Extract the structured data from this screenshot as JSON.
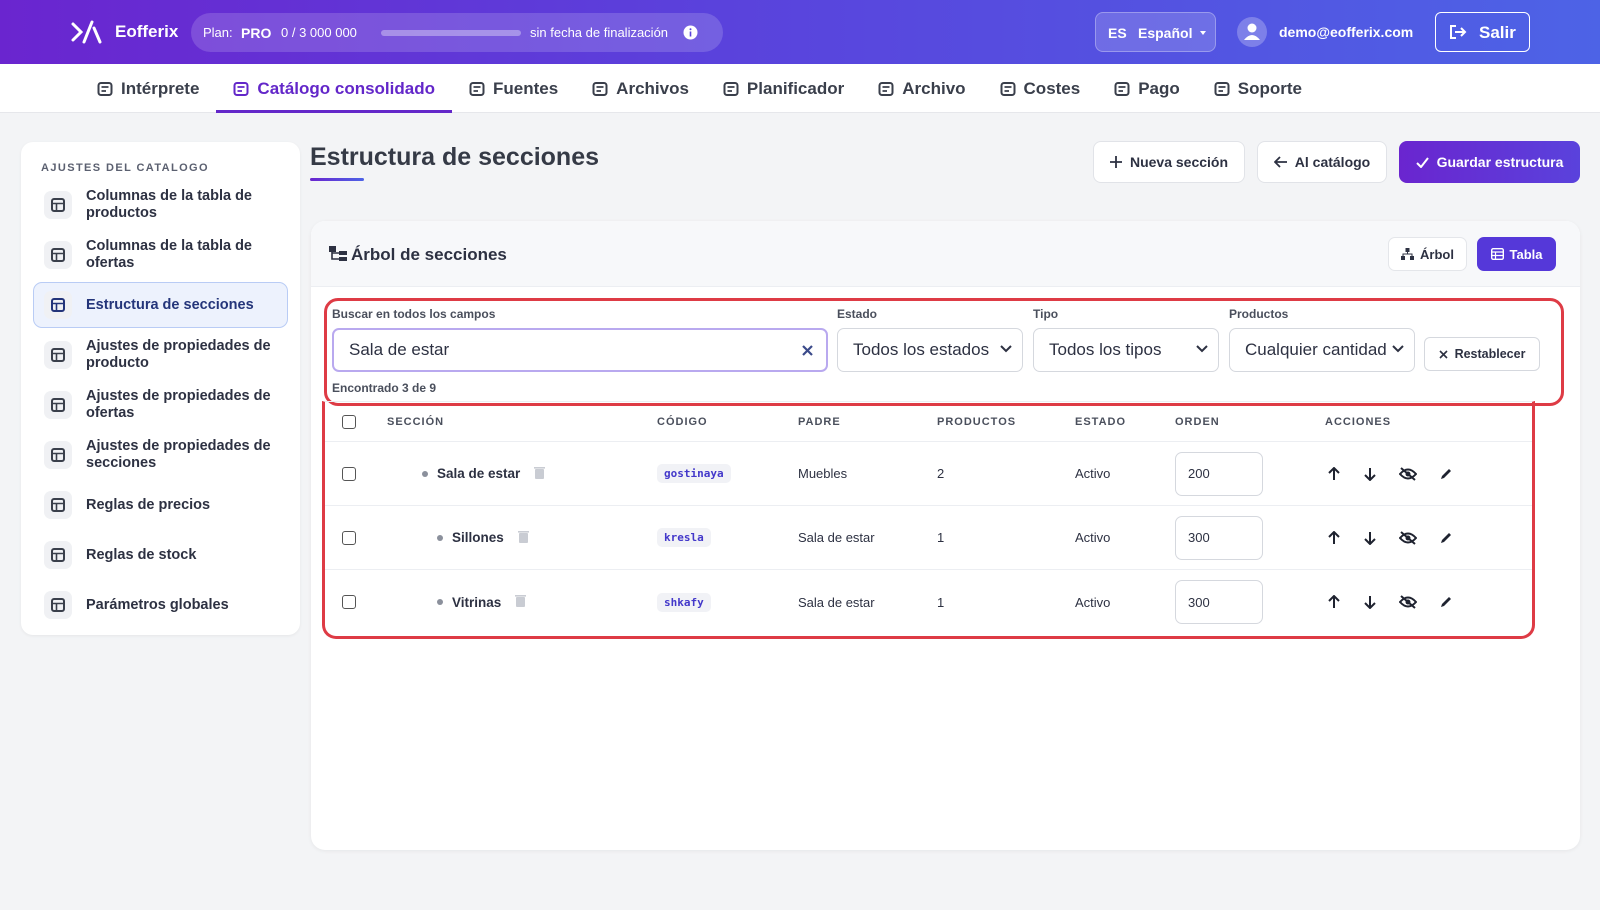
{
  "header": {
    "brand": "Eofferix",
    "plan_label": "Plan:",
    "plan": "PRO",
    "usage": "0 / 3 000 000",
    "end": "sin fecha de finalización",
    "lang_code": "ES",
    "lang": "Español",
    "user": "demo@eofferix.com",
    "logout": "Salir"
  },
  "nav": [
    "Intérprete",
    "Catálogo consolidado",
    "Fuentes",
    "Archivos",
    "Planificador",
    "Archivo",
    "Costes",
    "Pago",
    "Soporte"
  ],
  "sidebar": {
    "title": "AJUSTES DEL CATALOGO",
    "items": [
      "Columnas de la tabla de productos",
      "Columnas de la tabla de ofertas",
      "Estructura de secciones",
      "Ajustes de propiedades de producto",
      "Ajustes de propiedades de ofertas",
      "Ajustes de propiedades de secciones",
      "Reglas de precios",
      "Reglas de stock",
      "Parámetros globales"
    ]
  },
  "page": {
    "title": "Estructura de secciones",
    "actions": [
      "Nueva sección",
      "Al catálogo",
      "Guardar estructura"
    ]
  },
  "card": {
    "title": "Árbol de secciones",
    "views": [
      "Árbol",
      "Tabla"
    ]
  },
  "filters": {
    "search_label": "Buscar en todos los campos",
    "search_value": "Sala de estar",
    "estado_label": "Estado",
    "estado_value": "Todos los estados",
    "tipo_label": "Tipo",
    "tipo_value": "Todos los tipos",
    "productos_label": "Productos",
    "productos_value": "Cualquier cantidad",
    "reset": "Restablecer",
    "found": "Encontrado 3 de 9"
  },
  "table": {
    "headers": [
      "SECCIÓN",
      "CÓDIGO",
      "PADRE",
      "PRODUCTOS",
      "ESTADO",
      "ORDEN",
      "ACCIONES"
    ],
    "rows": [
      [
        "Sala de estar",
        "gostinaya",
        "Muebles",
        2,
        "Activo",
        200
      ],
      [
        "Sillones",
        "kresla",
        "Sala de estar",
        1,
        "Activo",
        300
      ],
      [
        "Vitrinas",
        "shkafy",
        "Sala de estar",
        1,
        "Activo",
        300
      ]
    ]
  }
}
